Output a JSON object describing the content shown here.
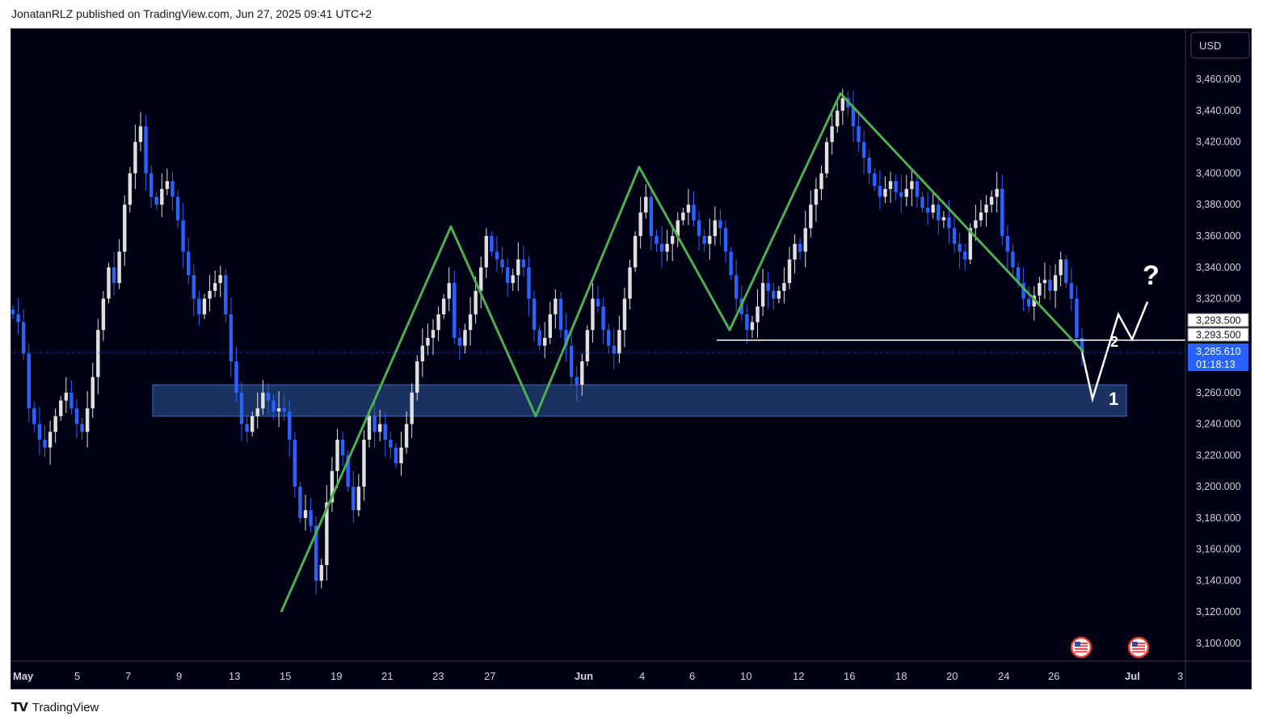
{
  "header": {
    "text": "JonatanRLZ published on TradingView.com, Jun 27, 2025 09:41 UTC+2"
  },
  "footer": {
    "logo_icon": "tradingview-logo-icon",
    "brand": "TradingView"
  },
  "colors": {
    "background": "#000014",
    "up_candle": "#e0e0e0",
    "down_candle": "#2962ff",
    "pattern_line": "#4caf50",
    "projection_line": "#ffffff",
    "zone_fill": "#1e3a6e",
    "price_badge": "#2962ff",
    "axis_text": "#d1d4dc"
  },
  "price_axis": {
    "currency_button": "USD",
    "ticks": [
      "3,460.000",
      "3,440.000",
      "3,420.000",
      "3,400.000",
      "3,380.000",
      "3,360.000",
      "3,340.000",
      "3,320.000",
      "3,260.000",
      "3,240.000",
      "3,220.000",
      "3,200.000",
      "3,180.000",
      "3,160.000",
      "3,140.000",
      "3,120.000",
      "3,100.000"
    ],
    "labels": {
      "level_a": "3,293.500",
      "level_b": "3,293.500",
      "last_price": "3,285.610",
      "countdown": "01:18:13"
    }
  },
  "time_axis": {
    "ticks": [
      "May",
      "5",
      "7",
      "9",
      "13",
      "15",
      "19",
      "21",
      "23",
      "27",
      "Jun",
      "4",
      "6",
      "10",
      "12",
      "16",
      "18",
      "20",
      "24",
      "26",
      "Jul",
      "3"
    ]
  },
  "annotations": {
    "label_1": "1",
    "label_2": "2",
    "question": "?"
  },
  "events": {
    "icon": "us-flag-event-icon"
  },
  "chart_data": {
    "type": "candlestick",
    "symbol_currency": "USD",
    "last_price": 3285.61,
    "horizontal_level": 3293.5,
    "support_zone": [
      3245,
      3265
    ],
    "ylim": [
      3090,
      3480
    ],
    "grid": false,
    "pattern_points": [
      3120,
      3366,
      3245,
      3404,
      3300,
      3451,
      3286
    ],
    "projection_points": [
      3286,
      3256,
      3310,
      3294,
      3318
    ],
    "closes": [
      3310,
      3305,
      3285,
      3250,
      3240,
      3230,
      3225,
      3235,
      3245,
      3255,
      3260,
      3250,
      3240,
      3235,
      3250,
      3270,
      3300,
      3320,
      3340,
      3330,
      3350,
      3380,
      3400,
      3420,
      3430,
      3400,
      3385,
      3380,
      3390,
      3395,
      3385,
      3370,
      3350,
      3335,
      3320,
      3310,
      3320,
      3325,
      3330,
      3335,
      3310,
      3280,
      3260,
      3240,
      3235,
      3245,
      3250,
      3260,
      3255,
      3248,
      3250,
      3248,
      3230,
      3200,
      3180,
      3185,
      3175,
      3140,
      3150,
      3190,
      3210,
      3230,
      3220,
      3200,
      3185,
      3200,
      3230,
      3245,
      3235,
      3240,
      3230,
      3225,
      3215,
      3225,
      3240,
      3260,
      3280,
      3290,
      3295,
      3300,
      3310,
      3320,
      3330,
      3295,
      3290,
      3300,
      3310,
      3325,
      3340,
      3360,
      3350,
      3345,
      3340,
      3330,
      3335,
      3345,
      3340,
      3320,
      3300,
      3290,
      3295,
      3310,
      3320,
      3300,
      3290,
      3270,
      3265,
      3280,
      3300,
      3320,
      3315,
      3300,
      3290,
      3285,
      3300,
      3320,
      3340,
      3360,
      3375,
      3385,
      3360,
      3355,
      3350,
      3355,
      3360,
      3370,
      3375,
      3380,
      3370,
      3360,
      3355,
      3360,
      3370,
      3365,
      3350,
      3335,
      3320,
      3310,
      3300,
      3305,
      3315,
      3330,
      3325,
      3320,
      3325,
      3330,
      3345,
      3355,
      3350,
      3365,
      3380,
      3390,
      3400,
      3420,
      3430,
      3440,
      3448,
      3442,
      3430,
      3420,
      3410,
      3400,
      3392,
      3385,
      3390,
      3395,
      3388,
      3385,
      3390,
      3395,
      3385,
      3378,
      3375,
      3380,
      3370,
      3372,
      3365,
      3355,
      3350,
      3345,
      3365,
      3370,
      3375,
      3380,
      3385,
      3390,
      3360,
      3350,
      3340,
      3330,
      3320,
      3315,
      3322,
      3330,
      3332,
      3325,
      3335,
      3345,
      3330,
      3320,
      3295,
      3286
    ]
  }
}
